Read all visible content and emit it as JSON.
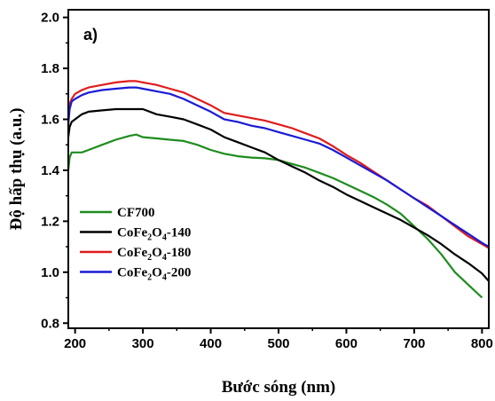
{
  "chart_data": {
    "type": "line",
    "panel_label": "a)",
    "xlabel": "Bước sóng (nm)",
    "ylabel": "Độ hấp thụ (a.u.)",
    "xlim": [
      190,
      810
    ],
    "ylim": [
      0.78,
      2.03
    ],
    "xticks": [
      200,
      300,
      400,
      500,
      600,
      700,
      800
    ],
    "yticks": [
      0.8,
      1.0,
      1.2,
      1.4,
      1.6,
      1.8,
      2.0
    ],
    "xtick_labels": [
      "200",
      "300",
      "400",
      "500",
      "600",
      "700",
      "800"
    ],
    "ytick_labels": [
      "0.8",
      "1.0",
      "1.2",
      "1.4",
      "1.6",
      "1.8",
      "2.0"
    ],
    "grid": false,
    "legend_position": "bottom-left",
    "series": [
      {
        "name": "CF700",
        "legend": {
          "pre": "CF700",
          "sub1": "",
          "mid": "",
          "sub2": "",
          "post": ""
        },
        "color": "#1e8c1e",
        "x": [
          190,
          192,
          195,
          200,
          210,
          220,
          240,
          260,
          280,
          290,
          300,
          320,
          340,
          360,
          380,
          400,
          420,
          440,
          460,
          480,
          500,
          520,
          540,
          560,
          580,
          600,
          620,
          640,
          660,
          680,
          700,
          720,
          740,
          760,
          780,
          800
        ],
        "y": [
          1.4,
          1.45,
          1.47,
          1.47,
          1.47,
          1.48,
          1.5,
          1.52,
          1.535,
          1.54,
          1.53,
          1.525,
          1.52,
          1.515,
          1.5,
          1.48,
          1.465,
          1.455,
          1.45,
          1.447,
          1.44,
          1.425,
          1.41,
          1.39,
          1.37,
          1.345,
          1.32,
          1.295,
          1.265,
          1.23,
          1.18,
          1.13,
          1.07,
          1.0,
          0.95,
          0.9
        ]
      },
      {
        "name": "CoFe2O4-140",
        "legend": {
          "pre": "CoFe",
          "sub1": "2",
          "mid": "O",
          "sub2": "4",
          "post": "-140"
        },
        "color": "#000000",
        "x": [
          190,
          192,
          195,
          200,
          210,
          220,
          240,
          260,
          280,
          300,
          320,
          340,
          360,
          380,
          400,
          420,
          440,
          460,
          480,
          500,
          520,
          540,
          560,
          580,
          600,
          620,
          640,
          660,
          680,
          700,
          720,
          740,
          760,
          780,
          800,
          810
        ],
        "y": [
          1.53,
          1.57,
          1.59,
          1.6,
          1.62,
          1.63,
          1.635,
          1.64,
          1.64,
          1.64,
          1.62,
          1.61,
          1.6,
          1.58,
          1.56,
          1.53,
          1.51,
          1.49,
          1.47,
          1.44,
          1.415,
          1.39,
          1.36,
          1.335,
          1.305,
          1.28,
          1.255,
          1.23,
          1.205,
          1.175,
          1.145,
          1.11,
          1.07,
          1.035,
          0.995,
          0.965
        ]
      },
      {
        "name": "CoFe2O4-180",
        "legend": {
          "pre": "CoFe",
          "sub1": "2",
          "mid": "O",
          "sub2": "4",
          "post": "-180"
        },
        "color": "#e01b1b",
        "x": [
          190,
          192,
          195,
          200,
          210,
          220,
          240,
          260,
          280,
          290,
          300,
          320,
          340,
          360,
          380,
          400,
          420,
          440,
          460,
          480,
          500,
          520,
          540,
          560,
          580,
          600,
          620,
          640,
          660,
          680,
          700,
          720,
          740,
          760,
          780,
          800,
          810
        ],
        "y": [
          1.6,
          1.66,
          1.68,
          1.7,
          1.715,
          1.725,
          1.735,
          1.745,
          1.75,
          1.75,
          1.745,
          1.735,
          1.72,
          1.705,
          1.68,
          1.655,
          1.625,
          1.615,
          1.605,
          1.595,
          1.58,
          1.565,
          1.545,
          1.525,
          1.495,
          1.46,
          1.43,
          1.395,
          1.36,
          1.325,
          1.29,
          1.26,
          1.22,
          1.18,
          1.14,
          1.11,
          1.095
        ]
      },
      {
        "name": "CoFe2O4-200",
        "legend": {
          "pre": "CoFe",
          "sub1": "2",
          "mid": "O",
          "sub2": "4",
          "post": "-200"
        },
        "color": "#1a1ad6",
        "x": [
          190,
          192,
          195,
          200,
          210,
          220,
          240,
          260,
          280,
          290,
          300,
          320,
          340,
          360,
          380,
          400,
          420,
          440,
          460,
          480,
          500,
          520,
          540,
          560,
          580,
          600,
          620,
          640,
          660,
          680,
          700,
          720,
          740,
          760,
          780,
          800,
          810
        ],
        "y": [
          1.58,
          1.64,
          1.67,
          1.68,
          1.695,
          1.705,
          1.715,
          1.72,
          1.725,
          1.725,
          1.72,
          1.71,
          1.7,
          1.68,
          1.655,
          1.63,
          1.6,
          1.59,
          1.575,
          1.565,
          1.55,
          1.535,
          1.52,
          1.505,
          1.48,
          1.45,
          1.42,
          1.39,
          1.36,
          1.325,
          1.29,
          1.255,
          1.22,
          1.185,
          1.15,
          1.115,
          1.1
        ]
      }
    ]
  }
}
